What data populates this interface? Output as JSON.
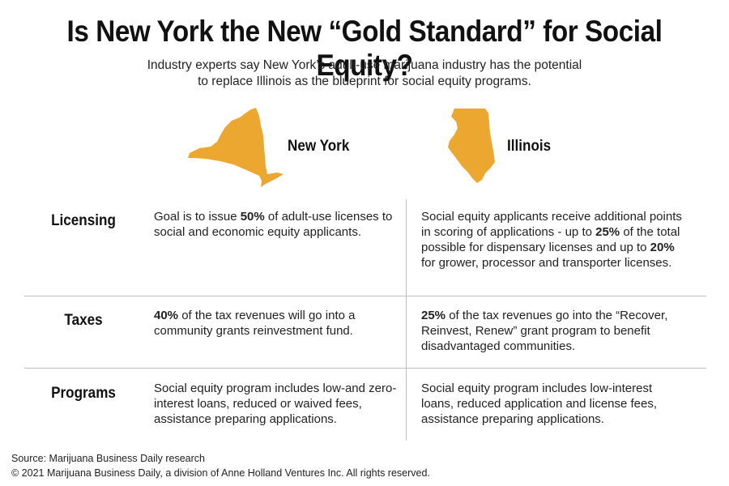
{
  "header": {
    "title": "Is New York the New “Gold Standard” for Social Equity?",
    "subtitle_line1": "Industry experts say New York’s adult-use marijuana industry has the potential",
    "subtitle_line2": "to replace Illinois as the blueprint for social equity programs."
  },
  "states": {
    "ny_label": "New York",
    "il_label": "Illinois",
    "map_color": "#EBA72F"
  },
  "rows": {
    "licensing": {
      "label": "Licensing",
      "ny": [
        "Goal is to issue ",
        "50%",
        " of adult-use licenses to social and economic equity applicants."
      ],
      "il": [
        "Social equity applicants receive additional points in scoring of applications - up to ",
        "25%",
        " of the total possible for dispensary licenses and up to ",
        "20%",
        " for grower, processor and transporter licenses."
      ]
    },
    "taxes": {
      "label": "Taxes",
      "ny": [
        "40%",
        " of the tax revenues will go into a community grants reinvestment fund."
      ],
      "il": [
        "25%",
        " of the tax revenues go into the “Recover, Reinvest, Renew” grant program to benefit disadvantaged communities."
      ]
    },
    "programs": {
      "label": "Programs",
      "ny": "Social equity program includes low-and zero-interest loans, reduced or waived fees, assistance preparing applications.",
      "il": "Social equity program includes low-interest loans, reduced application and license fees, assistance preparing applications."
    }
  },
  "footer": {
    "source": "Source: Marijuana Business Daily research",
    "copyright": "© 2021 Marijuana Business Daily, a division of Anne Holland Ventures Inc. All rights reserved."
  }
}
